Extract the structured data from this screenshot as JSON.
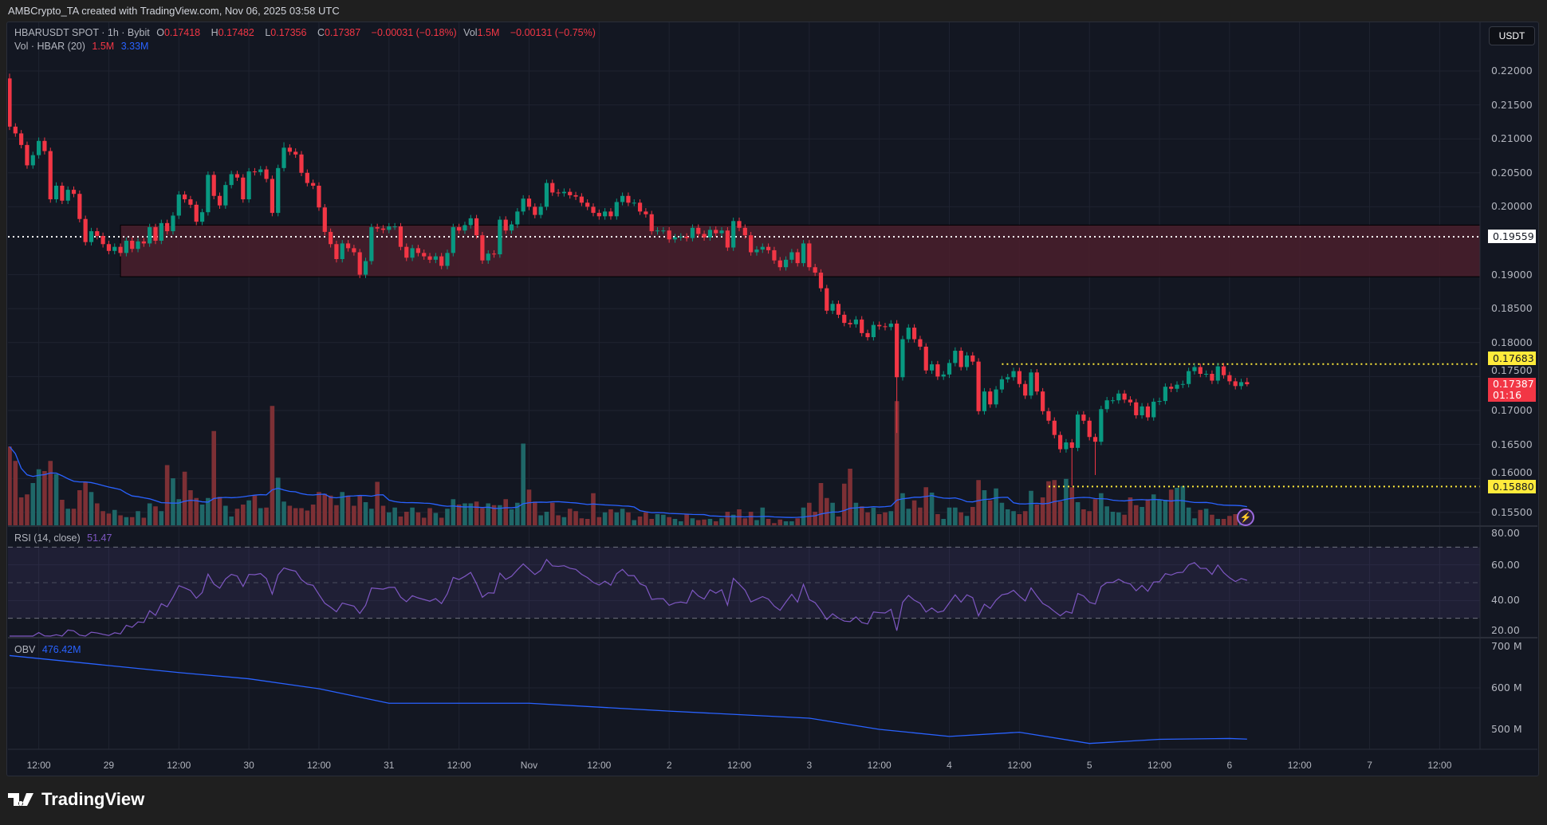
{
  "credit": "AMBCrypto_TA created with TradingView.com, Nov 06, 2025 03:58 UTC",
  "legend": {
    "symbol": "HBARUSDT SPOT · 1h · Bybit",
    "o_label": "O",
    "o": "0.17418",
    "h_label": "H",
    "h": "0.17482",
    "l_label": "L",
    "l": "0.17356",
    "c_label": "C",
    "c": "0.17387",
    "change": "−0.00031 (−0.18%)",
    "vol_label": "Vol",
    "vol": "1.5M",
    "vol_change": "−0.00131 (−0.75%)",
    "vol_ind": "Vol · HBAR (20)",
    "vol_ind_value": "1.5M",
    "vol_ind_ma": "3.33M",
    "rsi": "RSI (14, close)",
    "rsi_value": "51.47",
    "obv": "OBV",
    "obv_value": "476.42M"
  },
  "currency_button": "USDT",
  "price_tags": {
    "white": "0.19559",
    "resistance": "0.17683",
    "current": "0.17387",
    "countdown": "01:16",
    "support": "0.15880"
  },
  "logo_text": "TradingView",
  "colors": {
    "up": "#089981",
    "down": "#f23645",
    "vol_up": "#1f6768",
    "vol_down": "#7d3035",
    "vol_ma": "#2962ff",
    "rsi": "#7e57c2",
    "obv": "#2962ff",
    "zone": "#4a1f2b",
    "level": "#ffeb3b",
    "background": "#131722"
  },
  "icons": {
    "alert": "lightning-icon",
    "logo": "tradingview-logo"
  },
  "chart_data": {
    "type": "candlestick",
    "symbol": "HBARUSDT",
    "interval": "1h",
    "start": "2025-10-28T07:00:00Z",
    "first_open": 0.2189,
    "close": [
      0.2118,
      0.2108,
      0.2091,
      0.2061,
      0.2076,
      0.2097,
      0.2082,
      0.2011,
      0.2031,
      0.2009,
      0.2025,
      0.2019,
      0.1982,
      0.1948,
      0.1964,
      0.1957,
      0.1945,
      0.1935,
      0.1941,
      0.1932,
      0.195,
      0.1938,
      0.1949,
      0.1946,
      0.197,
      0.195,
      0.1976,
      0.1964,
      0.1987,
      0.2018,
      0.2011,
      0.2003,
      0.1978,
      0.1992,
      0.2047,
      0.2016,
      0.2002,
      0.2032,
      0.2048,
      0.2043,
      0.2011,
      0.2052,
      0.2051,
      0.2055,
      0.2041,
      0.1991,
      0.2057,
      0.2087,
      0.2081,
      0.2077,
      0.205,
      0.2035,
      0.2031,
      0.1999,
      0.1963,
      0.1945,
      0.1923,
      0.1946,
      0.1939,
      0.1933,
      0.19,
      0.192,
      0.197,
      0.1968,
      0.1966,
      0.1971,
      0.1971,
      0.1941,
      0.1925,
      0.1939,
      0.1932,
      0.1927,
      0.1922,
      0.1927,
      0.1913,
      0.1932,
      0.197,
      0.1965,
      0.1973,
      0.1983,
      0.1958,
      0.1921,
      0.1931,
      0.193,
      0.1981,
      0.1965,
      0.1974,
      0.1993,
      0.2012,
      0.2,
      0.1988,
      0.2,
      0.2035,
      0.2021,
      0.202,
      0.2022,
      0.2017,
      0.2015,
      0.2006,
      0.2,
      0.1991,
      0.1986,
      0.1993,
      0.1986,
      0.2007,
      0.2016,
      0.2006,
      0.2006,
      0.1993,
      0.1989,
      0.1964,
      0.1965,
      0.1965,
      0.1952,
      0.1955,
      0.1956,
      0.1954,
      0.1969,
      0.196,
      0.1955,
      0.1966,
      0.1961,
      0.1965,
      0.194,
      0.1979,
      0.1969,
      0.1958,
      0.1933,
      0.1937,
      0.1941,
      0.1936,
      0.1921,
      0.1911,
      0.1922,
      0.1933,
      0.1917,
      0.1946,
      0.1911,
      0.1903,
      0.188,
      0.1847,
      0.1857,
      0.1841,
      0.1829,
      0.1827,
      0.1834,
      0.1814,
      0.1808,
      0.1826,
      0.1824,
      0.1823,
      0.1828,
      0.1749,
      0.1805,
      0.1822,
      0.1805,
      0.1794,
      0.1759,
      0.1768,
      0.175,
      0.1753,
      0.177,
      0.1788,
      0.1764,
      0.1781,
      0.1772,
      0.1699,
      0.1728,
      0.1709,
      0.1731,
      0.1746,
      0.1749,
      0.1758,
      0.1739,
      0.1722,
      0.1756,
      0.1728,
      0.1699,
      0.1685,
      0.1664,
      0.1643,
      0.1653,
      0.1645,
      0.1694,
      0.1685,
      0.1661,
      0.1654,
      0.1702,
      0.1715,
      0.1715,
      0.1725,
      0.1716,
      0.1712,
      0.1693,
      0.1706,
      0.169,
      0.1713,
      0.1714,
      0.1735,
      0.1732,
      0.1738,
      0.1739,
      0.1758,
      0.1764,
      0.1754,
      0.1754,
      0.1744,
      0.1765,
      0.1752,
      0.1743,
      0.1736,
      0.17418,
      0.17387
    ],
    "notable_wicks": [
      {
        "index": 0,
        "high": 0.2196
      },
      {
        "index": 47,
        "high": 0.2095
      },
      {
        "index": 152,
        "low": 0.1667
      },
      {
        "index": 182,
        "low": 0.1589
      },
      {
        "index": 186,
        "low": 0.1605
      },
      {
        "index": 212,
        "high": 0.17482,
        "low": 0.17356
      }
    ],
    "volume_m": [
      13.3,
      10.9,
      4.8,
      5.3,
      7.2,
      9.5,
      9.2,
      10.9,
      8.7,
      4.4,
      2.9,
      2.9,
      6.0,
      7.4,
      5.7,
      3.8,
      2.5,
      2.1,
      2.7,
      1.8,
      1.5,
      1.5,
      2.5,
      1.4,
      3.8,
      3.3,
      2.5,
      10.2,
      8.0,
      4.5,
      9.1,
      6.0,
      4.7,
      3.6,
      4.7,
      15.9,
      4.9,
      3.4,
      1.6,
      2.9,
      3.6,
      4.3,
      5.1,
      3.0,
      3.1,
      20.1,
      8.1,
      4.1,
      3.4,
      3.0,
      3.0,
      2.6,
      3.6,
      5.7,
      5.4,
      5.1,
      3.5,
      5.7,
      5.1,
      3.4,
      5.2,
      4.0,
      2.9,
      7.4,
      3.4,
      2.3,
      3.1,
      1.6,
      2.4,
      3.1,
      2.3,
      1.4,
      3.0,
      2.2,
      1.4,
      2.9,
      4.5,
      3.6,
      3.8,
      3.8,
      4.1,
      3.0,
      3.8,
      3.5,
      3.5,
      4.5,
      2.8,
      3.9,
      13.8,
      6.1,
      4.1,
      1.8,
      2.4,
      3.9,
      1.8,
      1.5,
      2.9,
      2.5,
      1.3,
      1.2,
      5.5,
      1.5,
      2.3,
      2.8,
      2.3,
      2.9,
      2.3,
      1.0,
      1.6,
      2.3,
      1.2,
      2.0,
      1.9,
      1.5,
      1.2,
      0.8,
      2.0,
      1.3,
      1.0,
      1.1,
      1.2,
      0.8,
      1.3,
      2.4,
      1.9,
      2.8,
      1.3,
      2.4,
      1.0,
      3.1,
      1.2,
      0.5,
      1.1,
      0.8,
      0.8,
      1.3,
      3.1,
      3.9,
      2.4,
      7.2,
      4.7,
      3.9,
      1.6,
      7.1,
      9.6,
      3.9,
      3.3,
      2.3,
      3.1,
      2.0,
      2.3,
      2.5,
      20.9,
      5.5,
      2.9,
      4.3,
      3.1,
      6.5,
      5.6,
      2.0,
      1.2,
      3.1,
      3.1,
      2.3,
      1.7,
      3.2,
      7.7,
      6.0,
      4.3,
      6.3,
      3.9,
      2.8,
      2.5,
      2.0,
      2.5,
      5.9,
      3.6,
      4.8,
      7.5,
      7.7,
      4.1,
      7.9,
      6.5,
      4.0,
      2.8,
      2.5,
      4.5,
      5.5,
      3.3,
      2.4,
      2.3,
      1.9,
      4.8,
      3.5,
      3.2,
      4.5,
      5.3,
      4.4,
      4.4,
      6.1,
      6.4,
      6.7,
      3.1,
      1.3,
      2.7,
      2.9,
      1.9,
      1.2,
      1.2,
      1.7,
      2.0,
      0.9,
      1.5
    ],
    "obv_m": [
      [
        "2025-10-28T07:00:00Z",
        678
      ],
      [
        "2025-10-29T12:00:00Z",
        637
      ],
      [
        "2025-10-30T00:00:00Z",
        622
      ],
      [
        "2025-10-30T12:00:00Z",
        598
      ],
      [
        "2025-10-31T00:00:00Z",
        563
      ],
      [
        "2025-11-01T00:00:00Z",
        563
      ],
      [
        "2025-11-02T00:00:00Z",
        544
      ],
      [
        "2025-11-03T00:00:00Z",
        527
      ],
      [
        "2025-11-03T12:00:00Z",
        500
      ],
      [
        "2025-11-04T00:00:00Z",
        483
      ],
      [
        "2025-11-04T12:00:00Z",
        493
      ],
      [
        "2025-11-05T00:00:00Z",
        466
      ],
      [
        "2025-11-05T12:00:00Z",
        476
      ],
      [
        "2025-11-06T00:00:00Z",
        478
      ],
      [
        "2025-11-06T03:00:00Z",
        476.42
      ]
    ],
    "zone": {
      "top": 0.1973,
      "bottom": 0.1897,
      "from": "2025-10-29T02:00:00Z"
    },
    "levels": [
      {
        "price": 0.19559,
        "style": "dotted-white"
      },
      {
        "price": 0.17683,
        "from": "2025-11-04T09:00:00Z",
        "style": "dotted-yellow"
      },
      {
        "price": 0.1588,
        "from": "2025-11-04T17:00:00Z",
        "style": "dotted-yellow"
      }
    ],
    "price_axis": [
      "0.22000",
      "0.21500",
      "0.21000",
      "0.20500",
      "0.20000",
      "0.19000",
      "0.18500",
      "0.18000",
      "0.17500",
      "0.17000",
      "0.16500",
      "0.16000",
      "0.15500"
    ],
    "rsi_axis": [
      "80.00",
      "60.00",
      "40.00",
      "20.00"
    ],
    "rsi_bands": [
      70,
      50,
      30
    ],
    "obv_axis": [
      "700 M",
      "600 M",
      "500 M"
    ],
    "time_axis": [
      [
        "2025-10-28T12:00:00Z",
        "12:00"
      ],
      [
        "2025-10-29T00:00:00Z",
        "29"
      ],
      [
        "2025-10-29T12:00:00Z",
        "12:00"
      ],
      [
        "2025-10-30T00:00:00Z",
        "30"
      ],
      [
        "2025-10-30T12:00:00Z",
        "12:00"
      ],
      [
        "2025-10-31T00:00:00Z",
        "31"
      ],
      [
        "2025-10-31T12:00:00Z",
        "12:00"
      ],
      [
        "2025-11-01T00:00:00Z",
        "Nov"
      ],
      [
        "2025-11-01T12:00:00Z",
        "12:00"
      ],
      [
        "2025-11-02T00:00:00Z",
        "2"
      ],
      [
        "2025-11-02T12:00:00Z",
        "12:00"
      ],
      [
        "2025-11-03T00:00:00Z",
        "3"
      ],
      [
        "2025-11-03T12:00:00Z",
        "12:00"
      ],
      [
        "2025-11-04T00:00:00Z",
        "4"
      ],
      [
        "2025-11-04T12:00:00Z",
        "12:00"
      ],
      [
        "2025-11-05T00:00:00Z",
        "5"
      ],
      [
        "2025-11-05T12:00:00Z",
        "12:00"
      ],
      [
        "2025-11-06T00:00:00Z",
        "6"
      ],
      [
        "2025-11-06T12:00:00Z",
        "12:00"
      ],
      [
        "2025-11-07T00:00:00Z",
        "7"
      ],
      [
        "2025-11-07T12:00:00Z",
        "12:00"
      ]
    ]
  }
}
